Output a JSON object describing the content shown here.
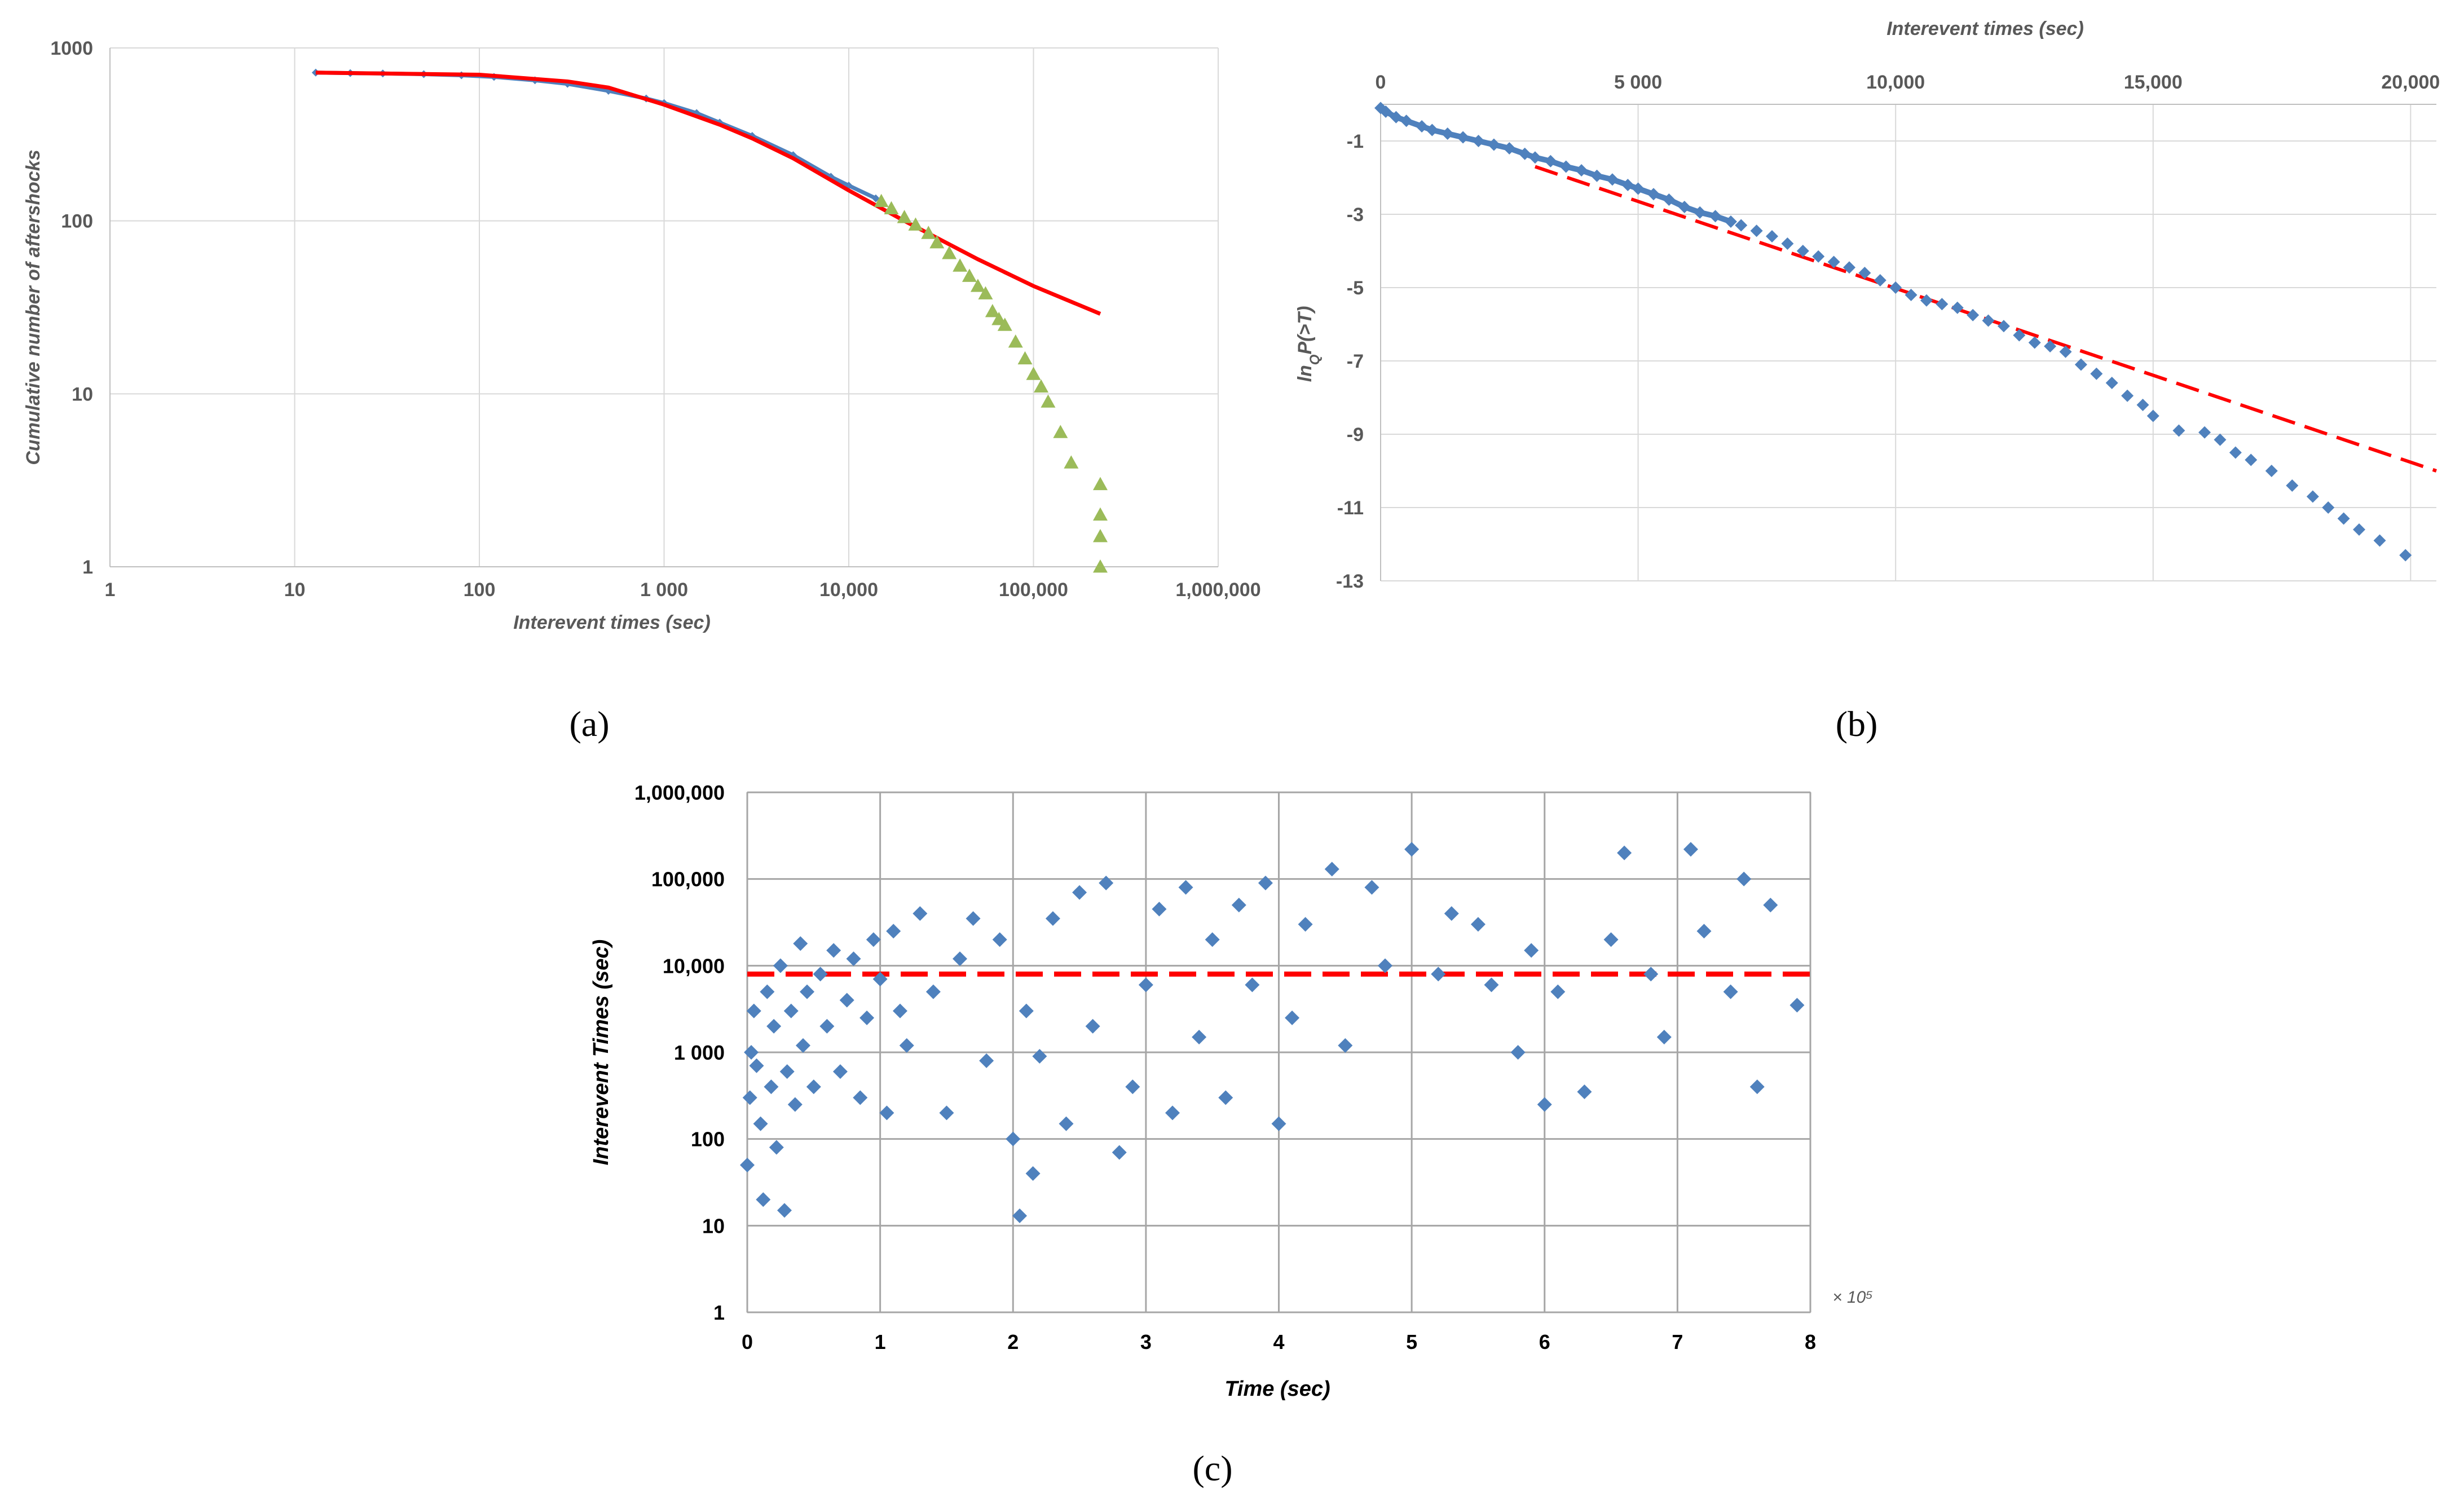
{
  "panels": {
    "a": "(a)",
    "b": "(b)",
    "c": "(c)"
  },
  "chart_data": [
    {
      "id": "a",
      "type": "scatter",
      "scale": "log-log",
      "xlabel": "Interevent   times (sec)",
      "ylabel": "Cumulative number of aftershocks",
      "xlim": [
        1,
        1000000
      ],
      "ylim": [
        1,
        1000
      ],
      "x_ticks": [
        "1",
        "10",
        "100",
        "1 000",
        "10,000",
        "100,000",
        "1,000,000"
      ],
      "y_ticks": [
        "1",
        "10",
        "100",
        "1000"
      ],
      "colors": {
        "observed": "#4f81bd",
        "tail": "#9bbb59",
        "fit": "#ff0000"
      },
      "series": [
        {
          "name": "observed",
          "marker": "diamond",
          "x": [
            13,
            20,
            30,
            50,
            80,
            120,
            200,
            300,
            500,
            800,
            1000,
            1500,
            2000,
            3000,
            5000,
            8000,
            10000,
            14000
          ],
          "y": [
            720,
            715,
            712,
            705,
            695,
            680,
            650,
            620,
            565,
            510,
            480,
            420,
            370,
            310,
            240,
            180,
            160,
            135
          ]
        },
        {
          "name": "tail",
          "marker": "triangle",
          "x": [
            15000,
            17000,
            20000,
            23000,
            27000,
            30000,
            35000,
            40000,
            45000,
            50000,
            55000,
            60000,
            65000,
            70000,
            80000,
            90000,
            100000,
            110000,
            120000,
            140000,
            160000,
            230000,
            230000,
            230000,
            230000
          ],
          "y": [
            130,
            118,
            105,
            95,
            85,
            75,
            65,
            55,
            48,
            42,
            38,
            30,
            27,
            25,
            20,
            16,
            13,
            11,
            9,
            6,
            4,
            3,
            2,
            1.5,
            1
          ]
        },
        {
          "name": "fit",
          "marker": "line",
          "x": [
            13,
            100,
            300,
            500,
            1000,
            2000,
            3000,
            5000,
            10000,
            20000,
            50000,
            100000,
            230000
          ],
          "y": [
            720,
            700,
            640,
            590,
            470,
            360,
            300,
            230,
            150,
            100,
            60,
            42,
            29
          ]
        }
      ]
    },
    {
      "id": "b",
      "type": "scatter",
      "xlabel": "Interevent times (sec)",
      "ylabel": "ln_Q P(>T)",
      "ylabel_parts": [
        "ln",
        "Q",
        "P(>T)"
      ],
      "xlim": [
        0,
        20500
      ],
      "ylim": [
        -13,
        0
      ],
      "x_ticks": [
        "0",
        "5 000",
        "10,000",
        "15,000",
        "20,000"
      ],
      "x_tick_values": [
        0,
        5000,
        10000,
        15000,
        20000
      ],
      "y_ticks": [
        "-1",
        "-3",
        "-5",
        "-7",
        "-9",
        "-11",
        "-13"
      ],
      "y_tick_values": [
        -1,
        -3,
        -5,
        -7,
        -9,
        -11,
        -13
      ],
      "colors": {
        "observed": "#4f81bd",
        "fit": "#ff0000"
      },
      "series": [
        {
          "name": "observed",
          "marker": "diamond",
          "x": [
            0,
            100,
            300,
            500,
            800,
            1000,
            1300,
            1600,
            1900,
            2200,
            2500,
            2800,
            3000,
            3300,
            3600,
            3900,
            4200,
            4500,
            4800,
            5000,
            5300,
            5600,
            5900,
            6200,
            6500,
            6800,
            7000,
            7300,
            7600,
            7900,
            8200,
            8500,
            8800,
            9100,
            9400,
            9700,
            10000,
            10300,
            10600,
            10900,
            11200,
            11500,
            11800,
            12100,
            12400,
            12700,
            13000,
            13300,
            13600,
            13900,
            14200,
            14500,
            14800,
            15000,
            15500,
            16000,
            16300,
            16600,
            16900,
            17300,
            17700,
            18100,
            18400,
            18700,
            19000,
            19400,
            19900
          ],
          "y": [
            -0.1,
            -0.2,
            -0.35,
            -0.45,
            -0.6,
            -0.7,
            -0.8,
            -0.9,
            -1.0,
            -1.1,
            -1.2,
            -1.35,
            -1.45,
            -1.55,
            -1.7,
            -1.8,
            -1.95,
            -2.05,
            -2.2,
            -2.3,
            -2.45,
            -2.6,
            -2.8,
            -2.95,
            -3.05,
            -3.2,
            -3.3,
            -3.45,
            -3.6,
            -3.8,
            -4.0,
            -4.15,
            -4.3,
            -4.45,
            -4.6,
            -4.8,
            -5.0,
            -5.2,
            -5.35,
            -5.45,
            -5.55,
            -5.75,
            -5.9,
            -6.05,
            -6.3,
            -6.5,
            -6.6,
            -6.75,
            -7.1,
            -7.35,
            -7.6,
            -7.95,
            -8.2,
            -8.5,
            -8.9,
            -8.95,
            -9.15,
            -9.5,
            -9.7,
            -10.0,
            -10.4,
            -10.7,
            -11.0,
            -11.3,
            -11.6,
            -11.9,
            -12.3
          ]
        },
        {
          "name": "fit",
          "marker": "dashed-line",
          "x": [
            3000,
            20500
          ],
          "y": [
            -1.7,
            -10.0
          ]
        }
      ]
    },
    {
      "id": "c",
      "type": "scatter",
      "scale": "log-y",
      "xlabel": "Time (sec)",
      "ylabel": "Interevent Times (sec)",
      "x_multiplier": "× 10⁵",
      "xlim": [
        0,
        8
      ],
      "ylim": [
        1,
        1000000
      ],
      "x_ticks": [
        "0",
        "1",
        "2",
        "3",
        "4",
        "5",
        "6",
        "7",
        "8"
      ],
      "y_ticks": [
        "1",
        "10",
        "100",
        "1 000",
        "10,000",
        "100,000",
        "1,000,000"
      ],
      "colors": {
        "observed": "#4f81bd",
        "threshold": "#ff0000"
      },
      "threshold_value": 8000,
      "series": [
        {
          "name": "observed",
          "marker": "diamond",
          "x": [
            0.0,
            0.02,
            0.03,
            0.05,
            0.07,
            0.1,
            0.12,
            0.15,
            0.18,
            0.2,
            0.22,
            0.25,
            0.28,
            0.3,
            0.33,
            0.36,
            0.4,
            0.42,
            0.45,
            0.5,
            0.55,
            0.6,
            0.65,
            0.7,
            0.75,
            0.8,
            0.85,
            0.9,
            0.95,
            1.0,
            1.05,
            1.1,
            1.15,
            1.2,
            1.3,
            1.4,
            1.5,
            1.6,
            1.7,
            1.8,
            1.9,
            2.0,
            2.05,
            2.1,
            2.15,
            2.2,
            2.3,
            2.4,
            2.5,
            2.6,
            2.7,
            2.8,
            2.9,
            3.0,
            3.1,
            3.2,
            3.3,
            3.4,
            3.5,
            3.6,
            3.7,
            3.8,
            3.9,
            4.0,
            4.1,
            4.2,
            4.4,
            4.5,
            4.7,
            4.8,
            5.0,
            5.2,
            5.3,
            5.5,
            5.6,
            5.8,
            5.9,
            6.0,
            6.1,
            6.3,
            6.5,
            6.6,
            6.8,
            6.9,
            7.1,
            7.2,
            7.4,
            7.5,
            7.6,
            7.7,
            7.9
          ],
          "y": [
            50,
            300,
            1000,
            3000,
            700,
            150,
            20,
            5000,
            400,
            2000,
            80,
            10000,
            15,
            600,
            3000,
            250,
            18000,
            1200,
            5000,
            400,
            8000,
            2000,
            15000,
            600,
            4000,
            12000,
            300,
            2500,
            20000,
            7000,
            200,
            25000,
            3000,
            1200,
            40000,
            5000,
            200,
            12000,
            35000,
            800,
            20000,
            100,
            13,
            3000,
            40,
            900,
            35000,
            150,
            70000,
            2000,
            90000,
            70,
            400,
            6000,
            45000,
            200,
            80000,
            1500,
            20000,
            300,
            50000,
            6000,
            90000,
            150,
            2500,
            30000,
            130000,
            1200,
            80000,
            10000,
            220000,
            8000,
            40000,
            30000,
            6000,
            1000,
            15000,
            250,
            5000,
            350,
            20000,
            200000,
            8000,
            1500,
            220000,
            25000,
            5000,
            100000,
            400,
            50000,
            3500
          ]
        },
        {
          "name": "threshold",
          "marker": "dashed-line",
          "x": [
            0,
            8
          ],
          "y": [
            8000,
            8000
          ]
        }
      ]
    }
  ]
}
